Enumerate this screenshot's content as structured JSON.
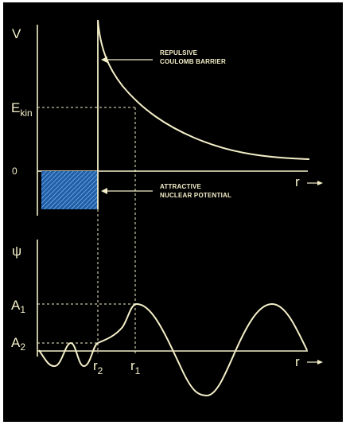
{
  "colors": {
    "background": "#000000",
    "line": "#f4efc9",
    "well_fill": "#1d5fa8",
    "well_hatch": "#8fb6e6"
  },
  "potential_panel": {
    "y_axis_label": "V",
    "energy_label_main": "E",
    "energy_label_sub": "kin",
    "zero_label": "0",
    "x_axis_label": "r",
    "barrier_label_line1": "REPULSIVE",
    "barrier_label_line2": "COULOMB BARRIER",
    "well_label_line1": "ATTRACTIVE",
    "well_label_line2": "NUCLEAR POTENTIAL"
  },
  "wavefunction_panel": {
    "y_axis_label": "ψ",
    "a1_main": "A",
    "a1_sub": "1",
    "a2_main": "A",
    "a2_sub": "2",
    "r2_main": "r",
    "r2_sub": "2",
    "r1_main": "r",
    "r1_sub": "1",
    "x_axis_label": "r"
  }
}
